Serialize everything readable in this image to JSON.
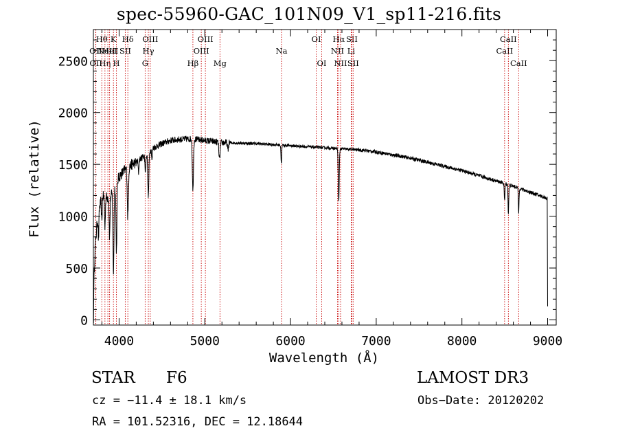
{
  "chart_data": {
    "type": "line",
    "title": "spec-55960-GAC_101N09_V1_sp11-216.fits",
    "xlabel": "Wavelength (Å)",
    "ylabel": "Flux (relative)",
    "xlim": [
      3700,
      9100
    ],
    "ylim": [
      -50,
      2800
    ],
    "xticks": [
      4000,
      5000,
      6000,
      7000,
      8000,
      9000
    ],
    "xtick_labels": [
      "4000",
      "5000",
      "6000",
      "7000",
      "8000",
      "9000"
    ],
    "yticks": [
      0,
      500,
      1000,
      1500,
      2000,
      2500
    ],
    "ytick_labels": [
      "0",
      "500",
      "1000",
      "1500",
      "2000",
      "2500"
    ],
    "continuum": {
      "x": [
        3700,
        3720,
        3745,
        3770,
        3800,
        3850,
        3900,
        3950,
        4000,
        4060,
        4100,
        4150,
        4200,
        4300,
        4400,
        4500,
        4600,
        4700,
        4800,
        4900,
        5000,
        5100,
        5200,
        5400,
        5600,
        5800,
        6000,
        6200,
        6400,
        6600,
        6800,
        7000,
        7200,
        7400,
        7600,
        7800,
        8000,
        8200,
        8400,
        8600,
        8800,
        9000
      ],
      "y": [
        200,
        700,
        950,
        1080,
        1190,
        1180,
        1180,
        1280,
        1380,
        1440,
        1460,
        1500,
        1520,
        1590,
        1660,
        1700,
        1730,
        1740,
        1745,
        1740,
        1730,
        1720,
        1710,
        1705,
        1700,
        1690,
        1680,
        1670,
        1660,
        1650,
        1640,
        1620,
        1590,
        1560,
        1520,
        1480,
        1440,
        1390,
        1340,
        1290,
        1230,
        1170
      ]
    },
    "absorption_lines": [
      {
        "x": 3760,
        "depth": 260,
        "width": 6
      },
      {
        "x": 3798,
        "depth": 240,
        "width": 6
      },
      {
        "x": 3835,
        "depth": 300,
        "width": 6
      },
      {
        "x": 3889,
        "depth": 380,
        "width": 7
      },
      {
        "x": 3934,
        "depth": 800,
        "width": 8
      },
      {
        "x": 3969,
        "depth": 650,
        "width": 8
      },
      {
        "x": 4102,
        "depth": 470,
        "width": 9
      },
      {
        "x": 4227,
        "depth": 120,
        "width": 6
      },
      {
        "x": 4307,
        "depth": 160,
        "width": 8
      },
      {
        "x": 4341,
        "depth": 430,
        "width": 9
      },
      {
        "x": 4384,
        "depth": 110,
        "width": 6
      },
      {
        "x": 4861,
        "depth": 500,
        "width": 9
      },
      {
        "x": 5172,
        "depth": 170,
        "width": 10
      },
      {
        "x": 5270,
        "depth": 70,
        "width": 8
      },
      {
        "x": 5893,
        "depth": 180,
        "width": 6
      },
      {
        "x": 6563,
        "depth": 520,
        "width": 8
      },
      {
        "x": 8498,
        "depth": 170,
        "width": 6
      },
      {
        "x": 8542,
        "depth": 280,
        "width": 6
      },
      {
        "x": 8662,
        "depth": 240,
        "width": 6
      }
    ],
    "endpoints": [
      {
        "x": 3702,
        "y": -30
      },
      {
        "x": 9000,
        "y": 130
      }
    ],
    "line_markers": [
      {
        "x": 3727,
        "label": "OII",
        "row": 2
      },
      {
        "x": 3729,
        "label": "OII",
        "row": 3
      },
      {
        "x": 3798,
        "label": "Hθ",
        "row": 1
      },
      {
        "x": 3835,
        "label": "Hη",
        "row": 3
      },
      {
        "x": 3869,
        "label": "NeIII",
        "row": 2
      },
      {
        "x": 3889,
        "label": "HeI",
        "row": 2
      },
      {
        "x": 3934,
        "label": "K",
        "row": 1
      },
      {
        "x": 3969,
        "label": "H",
        "row": 3
      },
      {
        "x": 4072,
        "label": "SII",
        "row": 2
      },
      {
        "x": 4102,
        "label": "Hδ",
        "row": 1
      },
      {
        "x": 4304,
        "label": "G",
        "row": 3
      },
      {
        "x": 4341,
        "label": "Hγ",
        "row": 2
      },
      {
        "x": 4363,
        "label": "OIII",
        "row": 1
      },
      {
        "x": 4861,
        "label": "Hβ",
        "row": 3
      },
      {
        "x": 4959,
        "label": "OIII",
        "row": 2
      },
      {
        "x": 5007,
        "label": "OIII",
        "row": 1
      },
      {
        "x": 5177,
        "label": "Mg",
        "row": 3
      },
      {
        "x": 5895,
        "label": "Na",
        "row": 2
      },
      {
        "x": 6300,
        "label": "OI",
        "row": 1
      },
      {
        "x": 6364,
        "label": "OI",
        "row": 3
      },
      {
        "x": 6548,
        "label": "NII",
        "row": 2
      },
      {
        "x": 6563,
        "label": "Hα",
        "row": 1
      },
      {
        "x": 6584,
        "label": "NII",
        "row": 3
      },
      {
        "x": 6708,
        "label": "Li",
        "row": 2
      },
      {
        "x": 6716,
        "label": "SII",
        "row": 1
      },
      {
        "x": 6731,
        "label": "SII",
        "row": 3
      },
      {
        "x": 8498,
        "label": "CaII",
        "row": 2
      },
      {
        "x": 8542,
        "label": "CaII",
        "row": 1
      },
      {
        "x": 8662,
        "label": "CaII",
        "row": 3
      }
    ],
    "colors": {
      "spectrum": "#000000",
      "marker_line": "#c80000",
      "axes": "#000000"
    }
  },
  "footer": {
    "object_class": "STAR",
    "subclass": "F6",
    "survey": "LAMOST DR3",
    "redshift": "cz = −11.4 ± 18.1 km/s",
    "obs_date": "Obs−Date: 20120202",
    "coords": "RA = 101.52316, DEC =  12.18644"
  }
}
